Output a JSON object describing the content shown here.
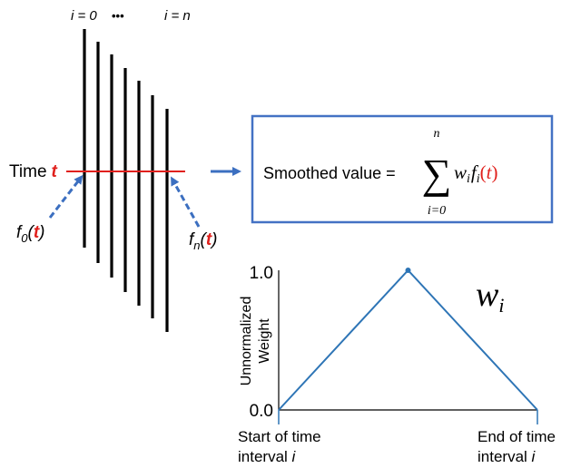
{
  "top_labels": {
    "first": "i = 0",
    "dots": "•••",
    "last": "i = n"
  },
  "time_label": {
    "word": "Time",
    "var": "t"
  },
  "f0": {
    "name": "f",
    "sub": "0",
    "open": "(",
    "arg": "t",
    "close": ")"
  },
  "fn": {
    "name": "f",
    "sub": "n",
    "open": "(",
    "arg": "t",
    "close": ")"
  },
  "formula": {
    "lhs": "Smoothed value =",
    "sum_top": "n",
    "sum_symbol": "∑",
    "sum_bottom": "i=0",
    "w": "w",
    "w_sub": "i",
    "f": "f",
    "f_sub": "i",
    "open": "(",
    "arg": "t",
    "close": ")"
  },
  "weight_chart": {
    "y_top_label": "1.0",
    "y_bottom_label": "0.0",
    "y_axis_line1": "Unnormalized",
    "y_axis_line2": "Weight",
    "series_label": "w",
    "series_sub": "i",
    "x_left_line1": "Start of time",
    "x_left_line2": "interval ",
    "x_left_var": "i",
    "x_right_line1": "End of time",
    "x_right_line2": "interval ",
    "x_right_var": "i"
  },
  "chart_data": {
    "type": "line",
    "x": [
      0,
      0.5,
      1
    ],
    "values": [
      0.0,
      1.0,
      0.0
    ],
    "xlabel": "",
    "ylabel": "Unnormalized Weight",
    "ylim": [
      0,
      1
    ]
  },
  "colors": {
    "accent_red": "#e0201c",
    "arrow_blue": "#3c6fc0",
    "box_border": "#4472c4",
    "line_blue": "#2e75b6",
    "ink": "#000000"
  }
}
